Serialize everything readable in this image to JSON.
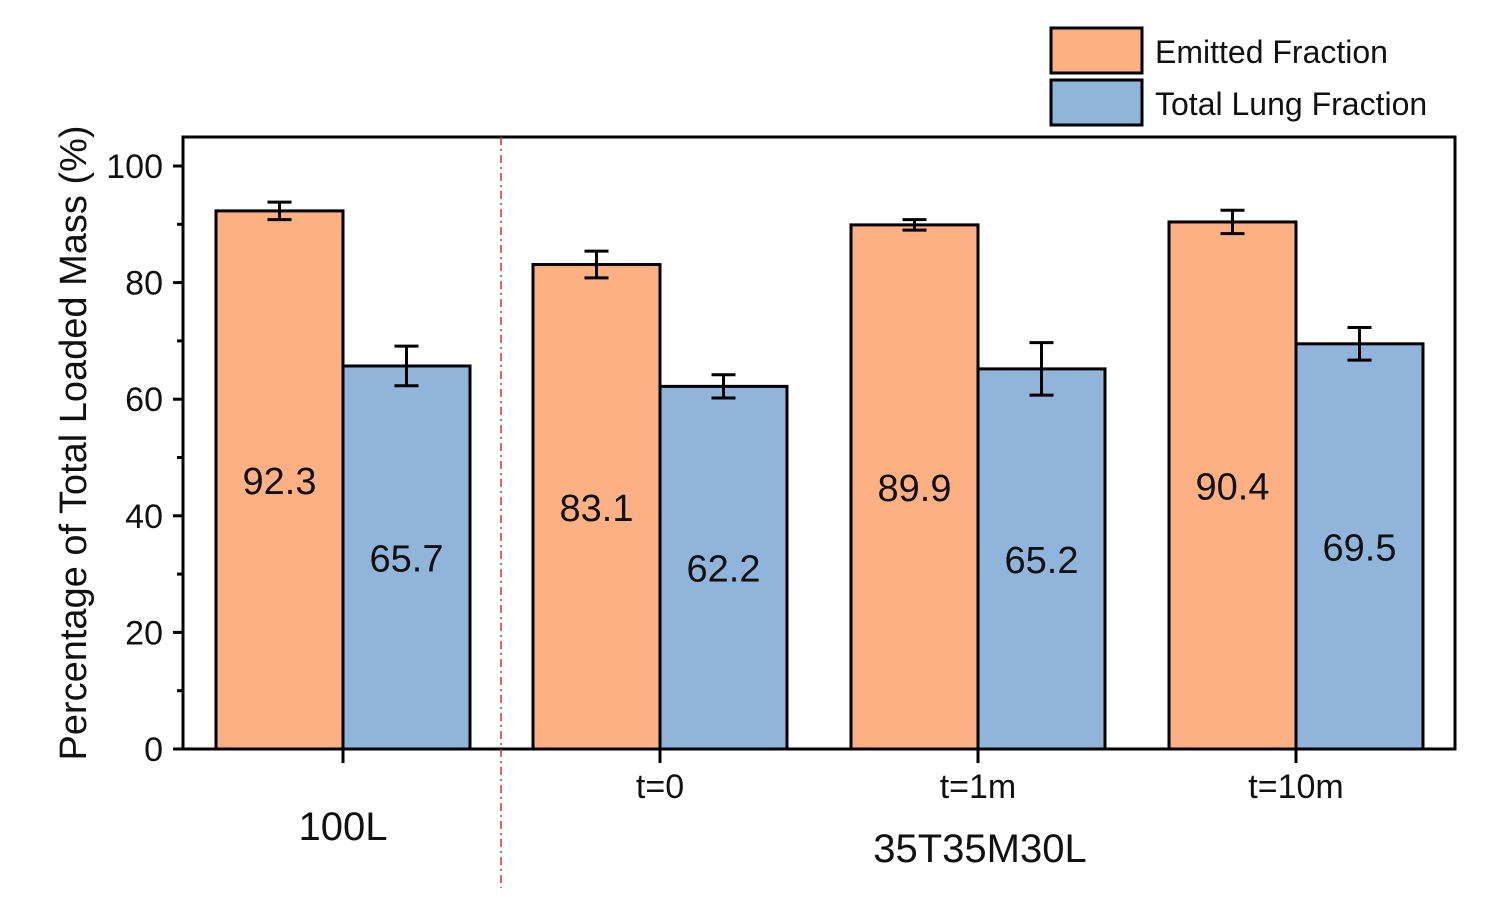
{
  "chart_data": {
    "type": "bar",
    "title": "",
    "ylabel": "Percentage of Total Loaded Mass (%)",
    "xlabel": "",
    "ylim": [
      0,
      100
    ],
    "yticks": [
      0,
      20,
      40,
      60,
      80,
      100
    ],
    "grid": false,
    "legend_position": "top-right",
    "categories": [
      "",
      "t=0",
      "t=1m",
      "t=10m"
    ],
    "groups": [
      {
        "label": "100L",
        "categories": [
          ""
        ]
      },
      {
        "label": "35T35M30L",
        "categories": [
          "t=0",
          "t=1m",
          "t=10m"
        ]
      }
    ],
    "series": [
      {
        "name": "Emitted Fraction",
        "color": "#FDB083",
        "values": [
          92.3,
          83.1,
          89.9,
          90.4
        ],
        "error": [
          1.5,
          2.3,
          0.9,
          2.0
        ],
        "labels": [
          "92.3",
          "83.1",
          "89.9",
          "90.4"
        ]
      },
      {
        "name": "Total Lung Fraction",
        "color": "#90B4DA",
        "values": [
          65.7,
          62.2,
          65.2,
          69.5
        ],
        "error": [
          3.4,
          2.0,
          4.5,
          2.8
        ],
        "labels": [
          "65.7",
          "62.2",
          "65.2",
          "69.5"
        ]
      }
    ],
    "annotations": [
      "dashed red vertical separator between 100L and 35T35M30L groups"
    ]
  }
}
